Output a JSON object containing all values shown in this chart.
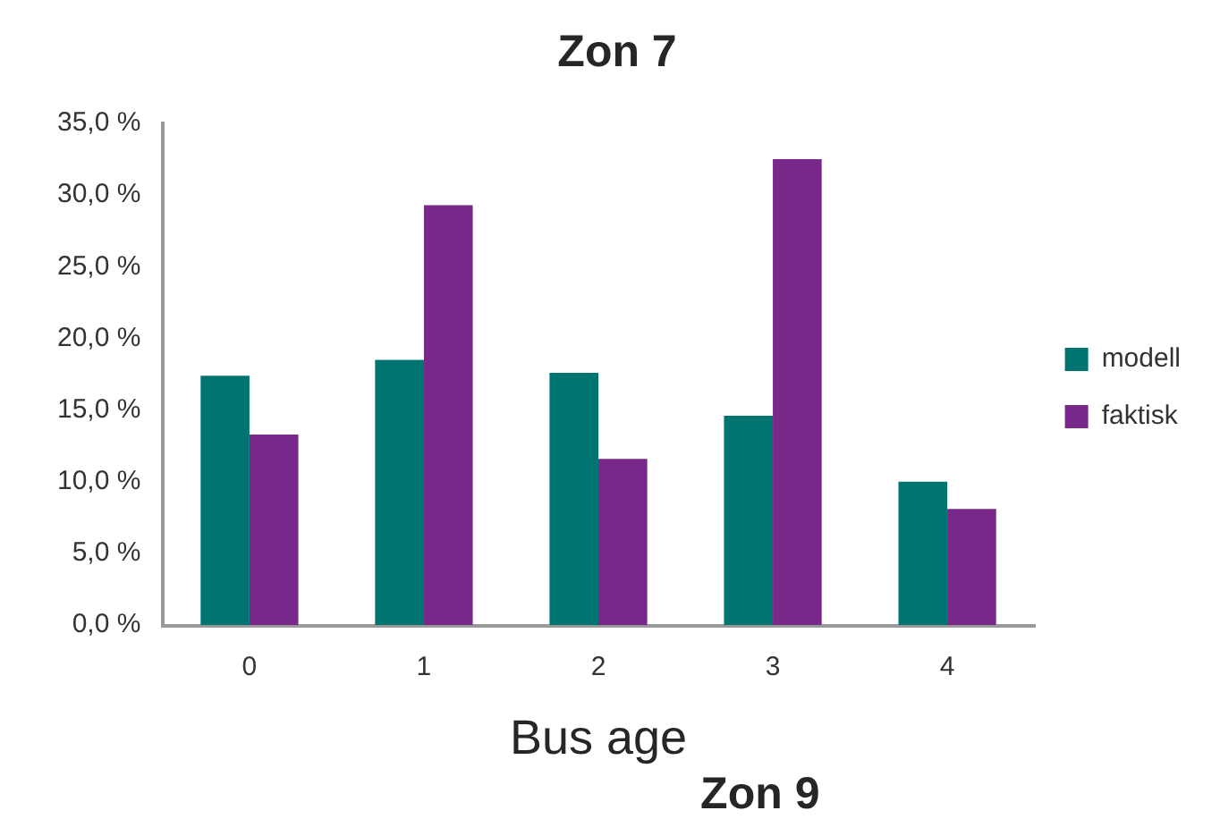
{
  "chart_data": {
    "type": "bar",
    "title": "Zon 7",
    "xlabel": "Bus age",
    "categories": [
      "0",
      "1",
      "2",
      "3",
      "4"
    ],
    "series": [
      {
        "name": "modell",
        "color": "#007470",
        "values": [
          17.4,
          18.5,
          17.6,
          14.6,
          10.0
        ]
      },
      {
        "name": "faktisk",
        "color": "#772888",
        "values": [
          13.3,
          29.3,
          11.6,
          32.5,
          8.1
        ]
      }
    ],
    "ylim": [
      0,
      35
    ],
    "yticks": [
      {
        "value": 0,
        "label": "0,0 %"
      },
      {
        "value": 5,
        "label": "5,0 %"
      },
      {
        "value": 10,
        "label": "10,0 %"
      },
      {
        "value": 15,
        "label": "15,0 %"
      },
      {
        "value": 20,
        "label": "20,0 %"
      },
      {
        "value": 25,
        "label": "25,0 %"
      },
      {
        "value": 30,
        "label": "30,0 %"
      },
      {
        "value": 35,
        "label": "35,0 %"
      }
    ],
    "legend": "right",
    "annotations": [
      "Zon 9"
    ]
  }
}
